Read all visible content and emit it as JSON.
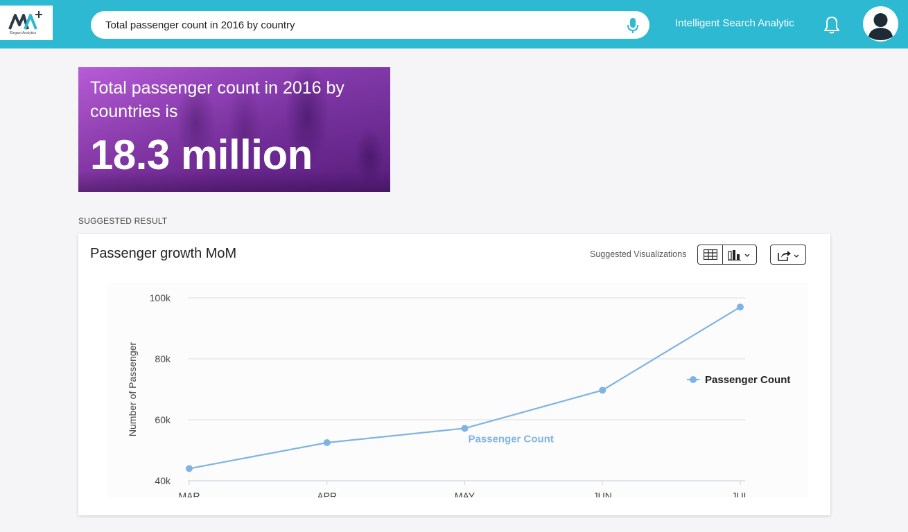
{
  "header": {
    "logo_subtitle": "Elegant Analytics",
    "search": {
      "value": "Total passenger count in 2016 by country",
      "placeholder": ""
    },
    "app_name": "Intelligent Search Analytic",
    "icons": {
      "mic": "microphone-icon",
      "bell": "bell-icon",
      "avatar": "user-avatar-icon"
    },
    "colors": {
      "bar": "#2cb9d1"
    }
  },
  "hero": {
    "text": "Total passenger count in 2016 by countries is",
    "value": "18.3 million",
    "color": "#8e37b7"
  },
  "section_label": "SUGGESTED RESULT",
  "card": {
    "title": "Passenger growth MoM",
    "suggested_label": "Suggested Visualizations",
    "buttons": {
      "table": "table-icon",
      "chart": "bar-chart-icon",
      "share": "share-icon"
    }
  },
  "chart_data": {
    "type": "line",
    "categories": [
      "MAR",
      "APR",
      "MAY",
      "JUN",
      "JUL"
    ],
    "series": [
      {
        "name": "Passenger Count",
        "values": [
          44000,
          52500,
          57200,
          69700,
          97000
        ],
        "color": "#7fb3e3"
      }
    ],
    "ylabel": "Number of Passenger",
    "ylim": [
      40000,
      100000
    ],
    "yticks": [
      40000,
      60000,
      80000,
      100000
    ],
    "ytick_labels": [
      "40k",
      "60k",
      "80k",
      "100k"
    ],
    "series_annotation": "Passenger Count",
    "legend_position": "right",
    "grid": true
  }
}
